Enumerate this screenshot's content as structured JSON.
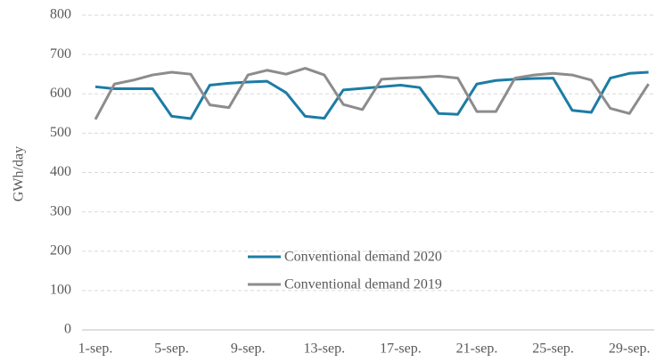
{
  "chart_data": {
    "type": "line",
    "y_label": "GWh/day",
    "categories": [
      "1-sep.",
      null,
      null,
      null,
      "5-sep.",
      null,
      null,
      null,
      "9-sep.",
      null,
      null,
      null,
      "13-sep.",
      null,
      null,
      null,
      "17-sep.",
      null,
      null,
      null,
      "21-sep.",
      null,
      null,
      null,
      "25-sep.",
      null,
      null,
      null,
      "29-sep.",
      null
    ],
    "series": [
      {
        "name": "Conventional demand 2020",
        "color": "#1c7ca5",
        "values": [
          618,
          613,
          613,
          613,
          543,
          537,
          622,
          627,
          630,
          632,
          603,
          543,
          538,
          610,
          614,
          618,
          622,
          616,
          550,
          548,
          625,
          634,
          637,
          639,
          640,
          558,
          553,
          640,
          652,
          655
        ]
      },
      {
        "name": "Conventional demand 2019",
        "color": "#8c8c8c",
        "values": [
          535,
          625,
          635,
          648,
          655,
          650,
          572,
          565,
          648,
          660,
          650,
          665,
          648,
          573,
          560,
          637,
          640,
          642,
          645,
          640,
          555,
          555,
          640,
          648,
          652,
          648,
          635,
          563,
          550,
          625
        ]
      }
    ],
    "ylim": [
      0,
      800
    ],
    "yticks": [
      0,
      100,
      200,
      300,
      400,
      500,
      600,
      700,
      800
    ],
    "grid": true,
    "legend": "center"
  }
}
